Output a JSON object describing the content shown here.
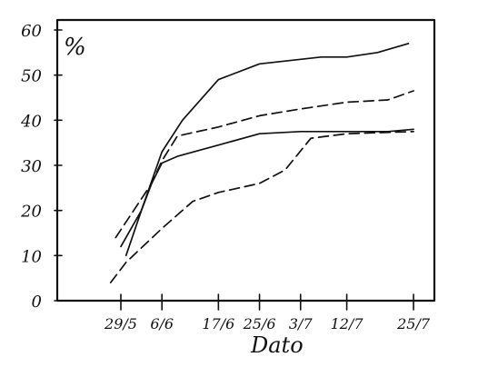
{
  "chart_data": {
    "type": "line",
    "title": "",
    "xlabel": "Dato",
    "ylabel": "%",
    "ylim": [
      0,
      60
    ],
    "y_ticks": [
      0,
      10,
      20,
      30,
      40,
      50,
      60
    ],
    "x_tick_labels": [
      "29/5",
      "6/6",
      "17/6",
      "25/6",
      "3/7",
      "12/7",
      "25/7"
    ],
    "grid": false,
    "legend": "none",
    "series": [
      {
        "style": "solid",
        "points": [
          {
            "x": "30/5",
            "y": 10
          },
          {
            "x": "2/6",
            "y": 20
          },
          {
            "x": "6/6",
            "y": 33
          },
          {
            "x": "10/6",
            "y": 40
          },
          {
            "x": "17/6",
            "y": 49
          },
          {
            "x": "25/6",
            "y": 52.5
          },
          {
            "x": "7/7",
            "y": 54
          },
          {
            "x": "12/7",
            "y": 54
          },
          {
            "x": "18/7",
            "y": 55
          },
          {
            "x": "24/7",
            "y": 57
          }
        ]
      },
      {
        "style": "dashed",
        "points": [
          {
            "x": "28/5",
            "y": 14
          },
          {
            "x": "4/6",
            "y": 26
          },
          {
            "x": "6/6",
            "y": 31
          },
          {
            "x": "9/6",
            "y": 36.5
          },
          {
            "x": "17/6",
            "y": 38.5
          },
          {
            "x": "25/6",
            "y": 41
          },
          {
            "x": "3/7",
            "y": 42.5
          },
          {
            "x": "12/7",
            "y": 44
          },
          {
            "x": "20/7",
            "y": 44.5
          },
          {
            "x": "25/7",
            "y": 46.5
          }
        ]
      },
      {
        "style": "solid",
        "points": [
          {
            "x": "29/5",
            "y": 12
          },
          {
            "x": "2/6",
            "y": 20
          },
          {
            "x": "4/6",
            "y": 26
          },
          {
            "x": "6/6",
            "y": 30.5
          },
          {
            "x": "9/6",
            "y": 32
          },
          {
            "x": "17/6",
            "y": 34.5
          },
          {
            "x": "25/6",
            "y": 37
          },
          {
            "x": "3/7",
            "y": 37.5
          },
          {
            "x": "12/7",
            "y": 37.5
          },
          {
            "x": "20/7",
            "y": 37.5
          },
          {
            "x": "25/7",
            "y": 38
          }
        ]
      },
      {
        "style": "dashed",
        "points": [
          {
            "x": "27/5",
            "y": 4
          },
          {
            "x": "30/5",
            "y": 8.5
          },
          {
            "x": "6/6",
            "y": 16
          },
          {
            "x": "12/6",
            "y": 22
          },
          {
            "x": "17/6",
            "y": 24
          },
          {
            "x": "25/6",
            "y": 26
          },
          {
            "x": "30/6",
            "y": 29
          },
          {
            "x": "5/7",
            "y": 36
          },
          {
            "x": "12/7",
            "y": 37
          },
          {
            "x": "25/7",
            "y": 37.5
          }
        ]
      }
    ]
  }
}
